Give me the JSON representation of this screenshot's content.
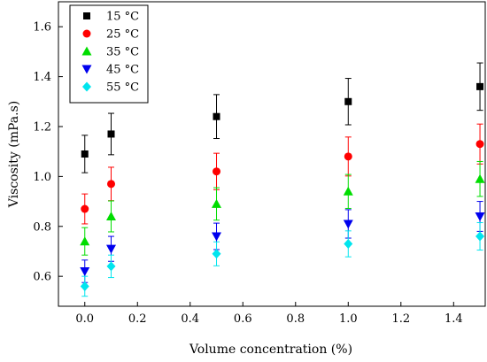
{
  "chart_data": {
    "type": "scatter",
    "xlabel": "Volume concentration (%)",
    "ylabel": "Viscosity (mPa.s)",
    "xlim": [
      -0.1,
      1.52
    ],
    "ylim": [
      0.48,
      1.7
    ],
    "xticks": [
      0.0,
      0.2,
      0.4,
      0.6,
      0.8,
      1.0,
      1.2,
      1.4
    ],
    "xtick_labels": [
      "0.0",
      "0.2",
      "0.4",
      "0.6",
      "0.8",
      "1.0",
      "1.2",
      "1.4"
    ],
    "yticks": [
      0.6,
      0.8,
      1.0,
      1.2,
      1.4,
      1.6
    ],
    "ytick_labels": [
      "0.6",
      "0.8",
      "1.0",
      "1.2",
      "1.4",
      "1.6"
    ],
    "legend_position": "top-left",
    "grid": false,
    "x": [
      0.0,
      0.1,
      0.5,
      1.0,
      1.5
    ],
    "series": [
      {
        "name": "15 °C",
        "marker": "square",
        "color": "#000000",
        "values": [
          1.09,
          1.17,
          1.24,
          1.3,
          1.36
        ],
        "errors": [
          0.075,
          0.083,
          0.088,
          0.093,
          0.095
        ]
      },
      {
        "name": "25 °C",
        "marker": "circle",
        "color": "#ff0000",
        "values": [
          0.87,
          0.97,
          1.02,
          1.08,
          1.13
        ],
        "errors": [
          0.06,
          0.067,
          0.073,
          0.078,
          0.08
        ]
      },
      {
        "name": "35 °C",
        "marker": "triangle-up",
        "color": "#00dd00",
        "values": [
          0.74,
          0.84,
          0.89,
          0.94,
          0.99
        ],
        "errors": [
          0.055,
          0.062,
          0.065,
          0.068,
          0.07
        ]
      },
      {
        "name": "45 °C",
        "marker": "triangle-down",
        "color": "#0000ee",
        "values": [
          0.62,
          0.71,
          0.76,
          0.81,
          0.84
        ],
        "errors": [
          0.045,
          0.05,
          0.053,
          0.057,
          0.06
        ]
      },
      {
        "name": "55 °C",
        "marker": "diamond",
        "color": "#00e5ee",
        "values": [
          0.56,
          0.64,
          0.69,
          0.73,
          0.76
        ],
        "errors": [
          0.04,
          0.045,
          0.048,
          0.052,
          0.055
        ]
      }
    ]
  }
}
